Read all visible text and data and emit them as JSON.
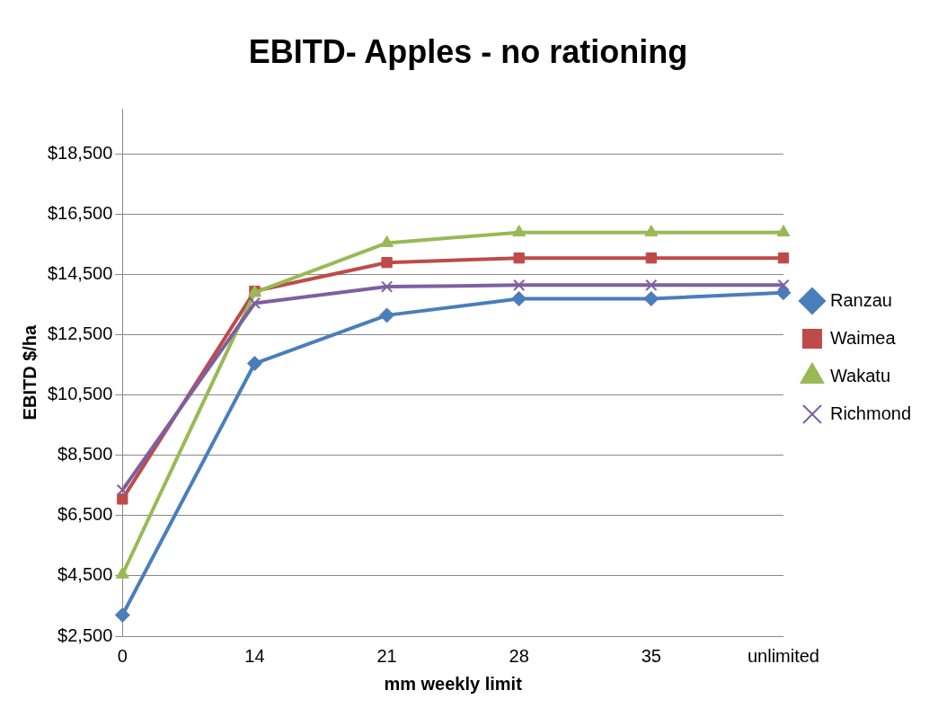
{
  "chart_data": {
    "type": "line",
    "title": "EBITD- Apples - no rationing",
    "xlabel": "mm weekly limit",
    "ylabel": "EBITD $/ha",
    "categories": [
      "0",
      "14",
      "21",
      "28",
      "35",
      "unlimited"
    ],
    "series": [
      {
        "name": "Ranzau",
        "color": "#4a7ebb",
        "marker": "diamond",
        "values": [
          3200,
          11550,
          13150,
          13700,
          13700,
          13900
        ]
      },
      {
        "name": "Waimea",
        "color": "#be4b48",
        "marker": "square",
        "values": [
          7050,
          13950,
          14900,
          15050,
          15050,
          15050
        ]
      },
      {
        "name": "Wakatu",
        "color": "#98b954",
        "marker": "triangle",
        "values": [
          4550,
          13900,
          15550,
          15900,
          15900,
          15900
        ]
      },
      {
        "name": "Richmond",
        "color": "#7d60a0",
        "marker": "cross",
        "values": [
          7350,
          13550,
          14100,
          14150,
          14150,
          14150
        ]
      }
    ],
    "ylim": [
      2500,
      20000
    ],
    "yticks": [
      {
        "value": 2500,
        "label": "$2,500"
      },
      {
        "value": 4500,
        "label": "$4,500"
      },
      {
        "value": 6500,
        "label": "$6,500"
      },
      {
        "value": 8500,
        "label": "$8,500"
      },
      {
        "value": 10500,
        "label": "$10,500"
      },
      {
        "value": 12500,
        "label": "$12,500"
      },
      {
        "value": 14500,
        "label": "$14,500"
      },
      {
        "value": 16500,
        "label": "$16,500"
      },
      {
        "value": 18500,
        "label": "$18,500"
      }
    ],
    "grid": "y",
    "legend": "right",
    "line_style": "solid"
  }
}
